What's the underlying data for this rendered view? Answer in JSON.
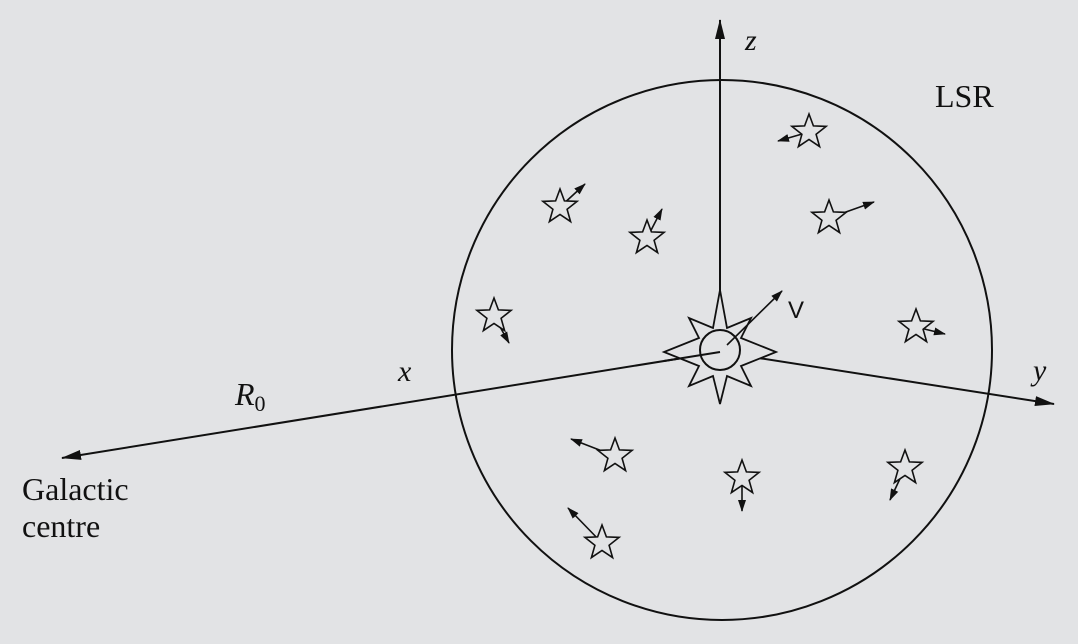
{
  "labels": {
    "z": "z",
    "y": "y",
    "x": "x",
    "lsr": "LSR",
    "r0_main": "R",
    "r0_sub": "0",
    "v": "V",
    "gc_line1": "Galactic",
    "gc_line2": "centre"
  },
  "colors": {
    "background": "#e2e3e5",
    "ink": "#111111"
  },
  "stars": [
    {
      "name": "star-1",
      "vector_dir": "lower-left"
    },
    {
      "name": "star-2",
      "vector_dir": "upper-right"
    },
    {
      "name": "star-3",
      "vector_dir": "upper-right"
    },
    {
      "name": "star-4",
      "vector_dir": "upper-right"
    },
    {
      "name": "star-5",
      "vector_dir": "lower-right"
    },
    {
      "name": "star-6",
      "vector_dir": "right"
    },
    {
      "name": "star-7",
      "vector_dir": "upper-left"
    },
    {
      "name": "star-8",
      "vector_dir": "down"
    },
    {
      "name": "star-9",
      "vector_dir": "lower-left"
    },
    {
      "name": "star-10",
      "vector_dir": "upper-left"
    }
  ]
}
